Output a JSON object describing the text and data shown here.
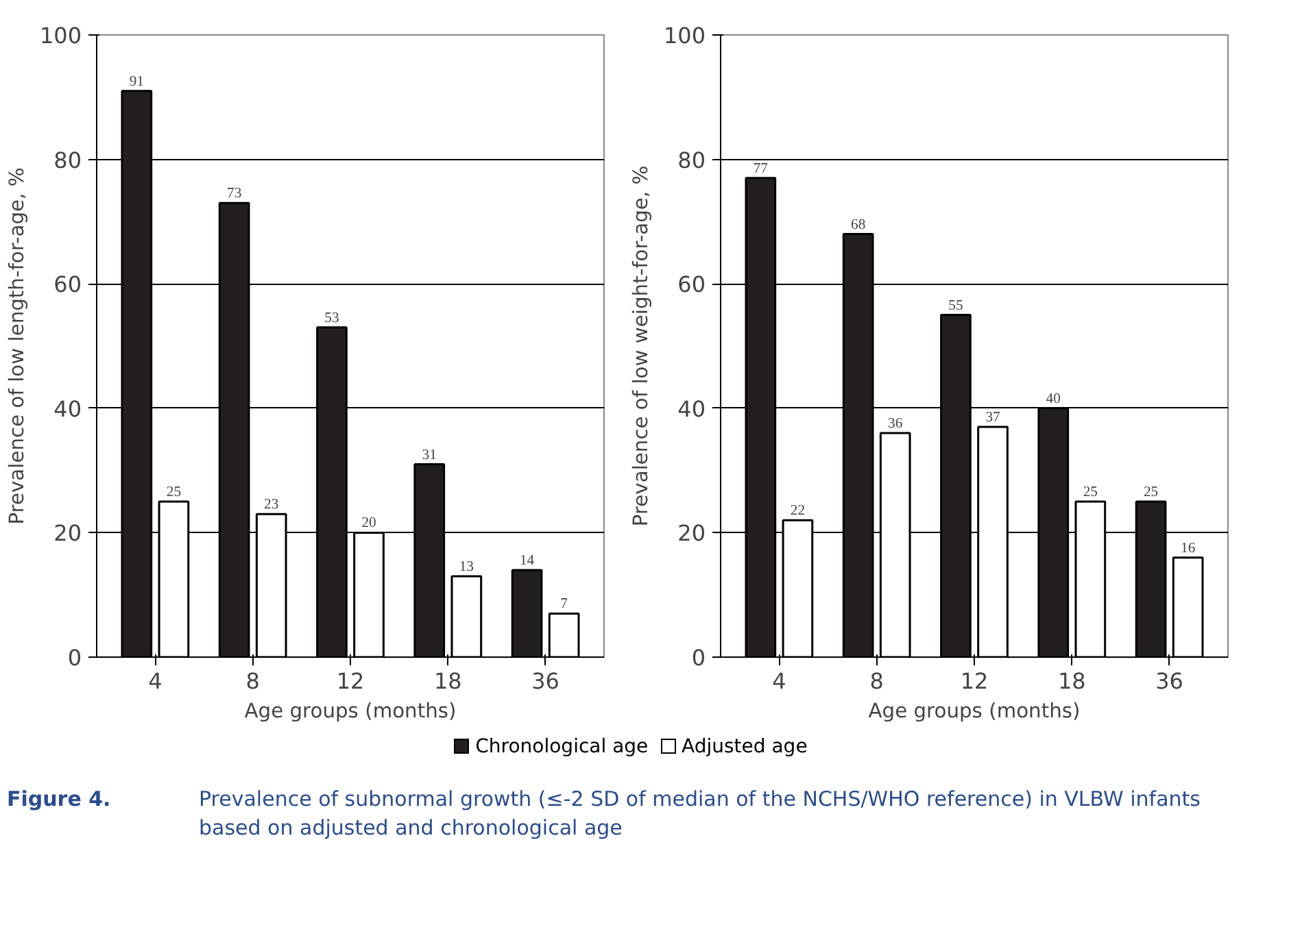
{
  "chart_data": [
    {
      "type": "bar",
      "categories": [
        "4",
        "8",
        "12",
        "18",
        "36"
      ],
      "xlabel": "Age groups (months)",
      "ylabel": "Prevalence of low length-for-age, %",
      "ylim": [
        0,
        100
      ],
      "yticks": [
        0,
        20,
        40,
        60,
        80,
        100
      ],
      "grid": "y",
      "data_labels": true,
      "legend": "bottom",
      "series": [
        {
          "name": "Chronological age",
          "color": "#231f20",
          "values": [
            91,
            73,
            53,
            31,
            14
          ]
        },
        {
          "name": "Adjusted age",
          "color": "#ffffff",
          "values": [
            25,
            23,
            20,
            13,
            7
          ]
        }
      ]
    },
    {
      "type": "bar",
      "categories": [
        "4",
        "8",
        "12",
        "18",
        "36"
      ],
      "xlabel": "Age groups (months)",
      "ylabel": "Prevalence of low weight-for-age, %",
      "ylim": [
        0,
        100
      ],
      "yticks": [
        0,
        20,
        40,
        60,
        80,
        100
      ],
      "grid": "y",
      "data_labels": true,
      "series": [
        {
          "color": "#231f20",
          "values": [
            77,
            68,
            55,
            40,
            25
          ]
        },
        {
          "color": "#ffffff",
          "values": [
            22,
            36,
            37,
            25,
            16
          ]
        }
      ],
      "annotations": [
        "Figure 4.",
        "Prevalence of subnormal growth (≤-2 SD of median of the NCHS/WHO reference) in VLBW infants based on adjusted and chronological age"
      ]
    }
  ]
}
